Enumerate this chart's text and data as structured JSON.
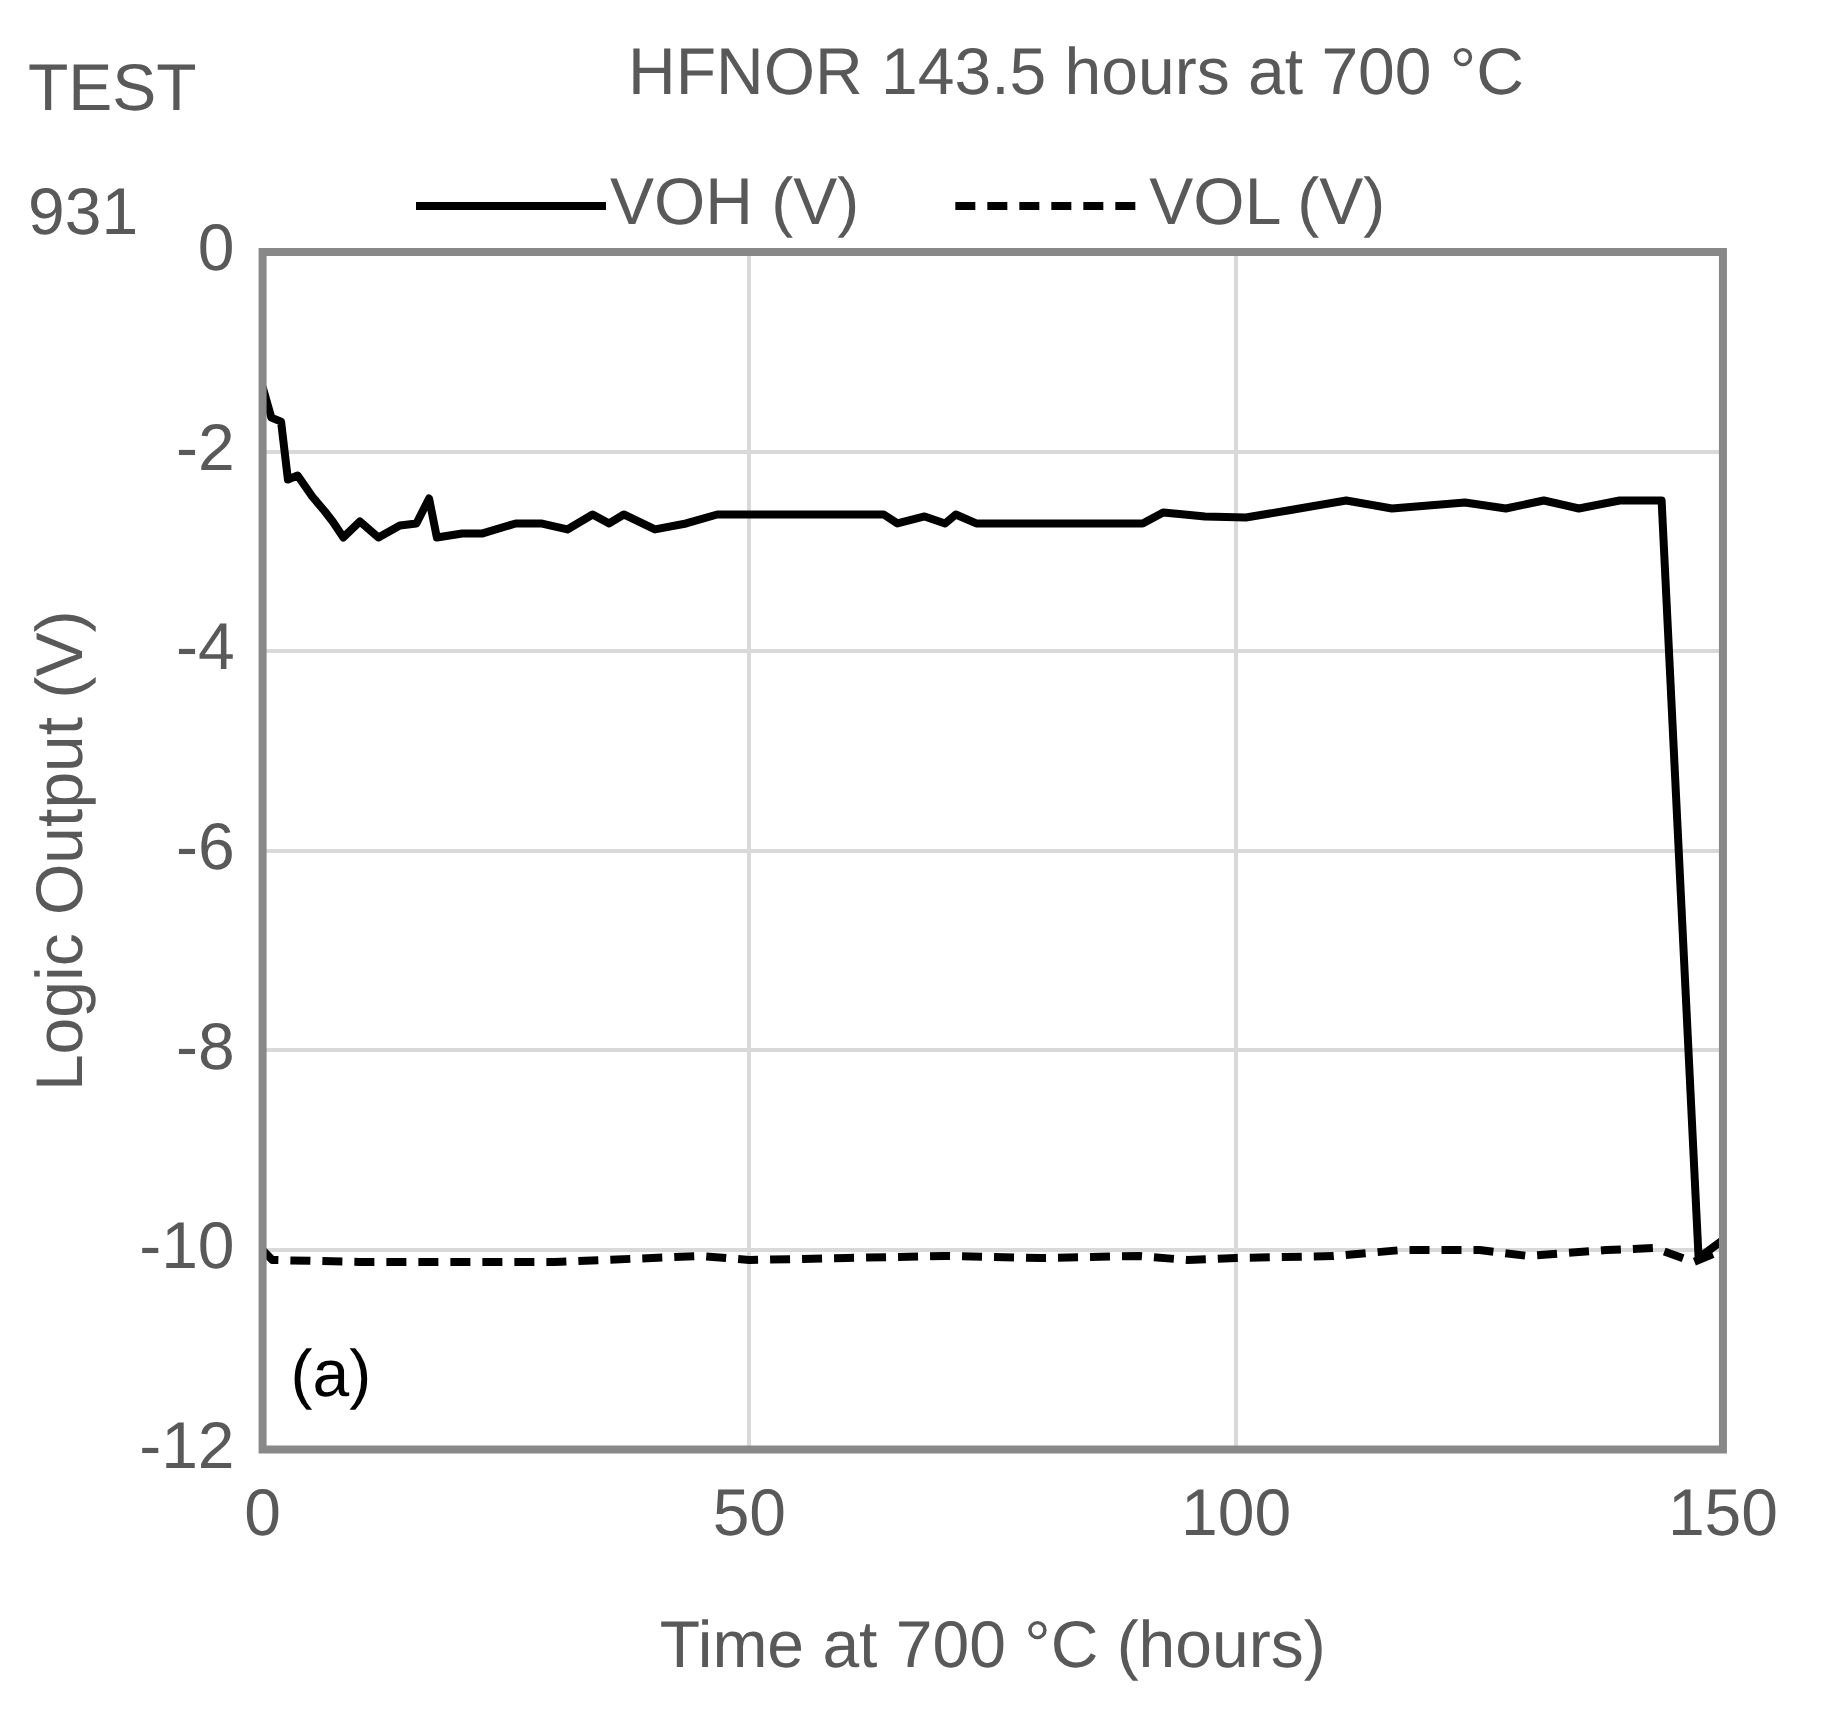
{
  "chart_data": {
    "type": "line",
    "title": "HFNOR 143.5 hours at 700 °C",
    "xlabel": "Time at 700 °C (hours)",
    "ylabel": "Logic Output (V)",
    "annotations": [
      "TEST 931",
      "(a)"
    ],
    "xlim": [
      0,
      150
    ],
    "xticks": [
      0,
      50,
      100,
      150
    ],
    "ylim": [
      -12,
      0
    ],
    "yticks": [
      -12,
      -10,
      -8,
      -6,
      -4,
      -2,
      0
    ],
    "grid": true,
    "legend": "top",
    "marker": "none",
    "series": [
      {
        "name": "VOH (V)",
        "color": "#000000",
        "line_style": "solid",
        "x": [
          0,
          0.9,
          1.9,
          2.6,
          3.6,
          5.1,
          6.4,
          7.2,
          8.3,
          10,
          11.9,
          14.1,
          15.8,
          17.1,
          17.9,
          20.5,
          22.6,
          26,
          28.6,
          31.3,
          33.9,
          35.6,
          37.1,
          40.3,
          43.5,
          46.7,
          48.8,
          63.8,
          65.2,
          68,
          70.1,
          71.2,
          73.3,
          90.4,
          92.5,
          94.7,
          96.8,
          101,
          105.3,
          111.3,
          116,
          123.5,
          127.7,
          131.6,
          135.2,
          139.4,
          143.7,
          147.5,
          150
        ],
        "values": [
          -1.35,
          -1.66,
          -1.7,
          -2.28,
          -2.24,
          -2.45,
          -2.6,
          -2.7,
          -2.86,
          -2.7,
          -2.86,
          -2.74,
          -2.72,
          -2.47,
          -2.86,
          -2.82,
          -2.82,
          -2.72,
          -2.72,
          -2.78,
          -2.63,
          -2.72,
          -2.63,
          -2.78,
          -2.72,
          -2.63,
          -2.63,
          -2.63,
          -2.72,
          -2.65,
          -2.72,
          -2.63,
          -2.72,
          -2.72,
          -2.61,
          -2.63,
          -2.65,
          -2.66,
          -2.59,
          -2.49,
          -2.57,
          -2.51,
          -2.57,
          -2.49,
          -2.57,
          -2.49,
          -2.49,
          -10.08,
          -9.9
        ]
      },
      {
        "name": "VOL (V)",
        "color": "#000000",
        "line_style": "dashed",
        "x": [
          0,
          1,
          10,
          30,
          45,
          50,
          60,
          70,
          80,
          90,
          95,
          100,
          110,
          117,
          125,
          130,
          138,
          143,
          147,
          150
        ],
        "values": [
          -10.0,
          -10.1,
          -10.12,
          -10.12,
          -10.06,
          -10.1,
          -10.08,
          -10.06,
          -10.08,
          -10.06,
          -10.1,
          -10.08,
          -10.06,
          -10.0,
          -10.0,
          -10.06,
          -10.0,
          -9.98,
          -10.12,
          -10.0
        ]
      }
    ]
  }
}
